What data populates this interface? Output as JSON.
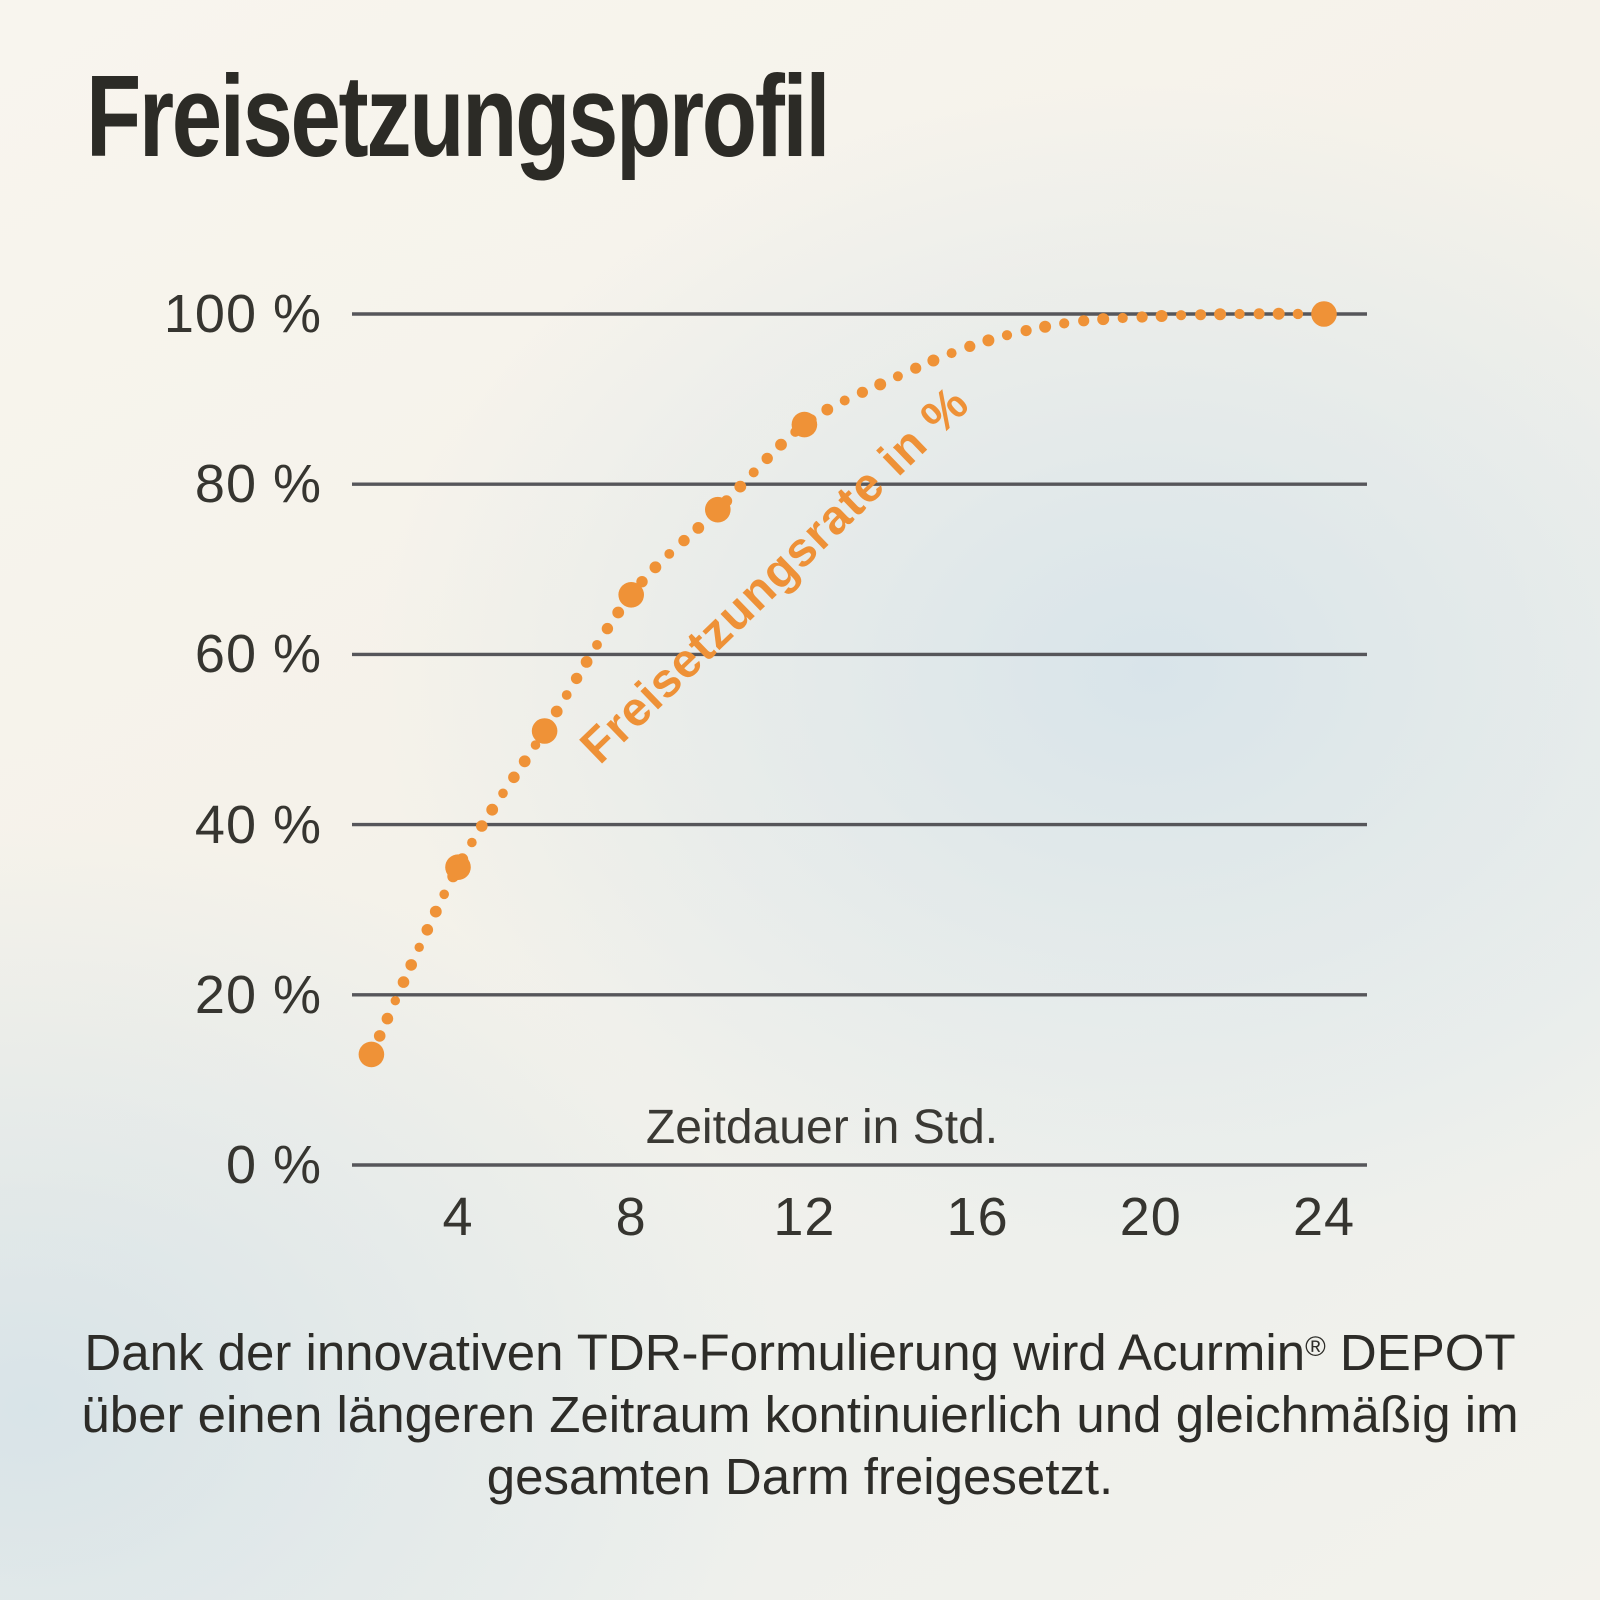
{
  "title": "Freisetzungsprofil",
  "chart_data": {
    "type": "line",
    "style": "dotted-curve-with-marked-points",
    "title": "Freisetzungsprofil",
    "xlabel": "Zeitdauer in Std.",
    "series_label": "Freisetzungsrate in %",
    "x_tick_labels": [
      "4",
      "8",
      "12",
      "16",
      "20",
      "24"
    ],
    "x_tick_values": [
      4,
      8,
      12,
      16,
      20,
      24
    ],
    "y_tick_labels": [
      "0 %",
      "20 %",
      "40 %",
      "60 %",
      "80 %",
      "100 %"
    ],
    "y_tick_values": [
      0,
      20,
      40,
      60,
      80,
      100
    ],
    "xlim": [
      1.5,
      25
    ],
    "ylim": [
      0,
      100
    ],
    "grid": "horizontal-only",
    "legend_position": "rotated-inline-above-curve",
    "data_points": [
      {
        "x": 2,
        "y": 13
      },
      {
        "x": 4,
        "y": 35
      },
      {
        "x": 6,
        "y": 51
      },
      {
        "x": 8,
        "y": 67
      },
      {
        "x": 10,
        "y": 77
      },
      {
        "x": 12,
        "y": 87
      },
      {
        "x": 24,
        "y": 100
      }
    ],
    "curve_anchors": [
      [
        2,
        13
      ],
      [
        4,
        35
      ],
      [
        6,
        51
      ],
      [
        8,
        67
      ],
      [
        10,
        77
      ],
      [
        12,
        87
      ],
      [
        14,
        92.3
      ],
      [
        16,
        96.5
      ],
      [
        18,
        98.9
      ],
      [
        20,
        99.7
      ],
      [
        22,
        100
      ],
      [
        24,
        100
      ]
    ],
    "colors": {
      "accent": "#ef9237",
      "grid": "#56565a",
      "text": "#2e2d28"
    }
  },
  "caption": {
    "line1_pre": "Dank der innovativen TDR-Formulierung wird Acurmin",
    "line1_sup": "®",
    "line1_post": " DEPOT",
    "line2": "über einen längeren Zeitraum kontinuierlich und gleichmäßig im",
    "line3": "gesamten Darm freigesetzt."
  }
}
